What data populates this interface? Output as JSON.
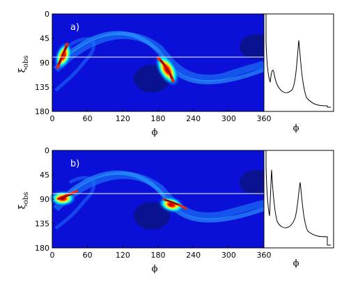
{
  "chart_data": [
    {
      "type": "heatmap",
      "panel_label": "a)",
      "xlabel": "ϕ",
      "ylabel": "ξ",
      "ylabel_sub": "obs",
      "xlim": [
        0,
        360
      ],
      "ylim": [
        180,
        0
      ],
      "xticks": [
        "0",
        "60",
        "120",
        "180",
        "240",
        "300",
        "360"
      ],
      "yticks": [
        "0",
        "45",
        "90",
        "135",
        "180"
      ],
      "guide_line_xi": 80,
      "background_color": "#0a10d8",
      "colormap": [
        "#00008f",
        "#0000ff",
        "#00ffff",
        "#ffff00",
        "#ff0000",
        "#800000"
      ],
      "hot_spots": [
        {
          "phi": 22,
          "xi": 75
        },
        {
          "phi": 195,
          "xi": 90
        }
      ],
      "dark_lobes": [
        {
          "phi": 170,
          "xi": 115
        },
        {
          "phi": 360,
          "xi": 55
        }
      ],
      "side_profile": {
        "xlabel": "ϕ",
        "peaks_xi": [
          18,
          90,
          45
        ],
        "baseline_xi_end": 180
      }
    },
    {
      "type": "heatmap",
      "panel_label": "b)",
      "xlabel": "ϕ",
      "ylabel": "ξ",
      "ylabel_sub": "obs",
      "xlim": [
        0,
        360
      ],
      "ylim": [
        180,
        0
      ],
      "xticks": [
        "0",
        "60",
        "120",
        "180",
        "240",
        "300",
        "360"
      ],
      "yticks": [
        "0",
        "45",
        "90",
        "135",
        "180"
      ],
      "guide_line_xi": 80,
      "background_color": "#0a10d8",
      "colormap": [
        "#00008f",
        "#0000ff",
        "#00ffff",
        "#ffff00",
        "#ff0000",
        "#800000"
      ],
      "hot_spots": [
        {
          "phi": 18,
          "xi": 88
        },
        {
          "phi": 195,
          "xi": 92
        }
      ],
      "dark_lobes": [
        {
          "phi": 170,
          "xi": 115
        },
        {
          "phi": 360,
          "xi": 55
        }
      ],
      "side_profile": {
        "xlabel": "ϕ",
        "peaks_xi": [
          18,
          40,
          60
        ],
        "baseline_xi_end": 180
      }
    }
  ]
}
